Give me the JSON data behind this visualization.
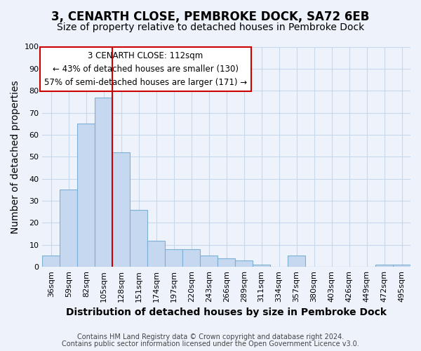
{
  "title": "3, CENARTH CLOSE, PEMBROKE DOCK, SA72 6EB",
  "subtitle": "Size of property relative to detached houses in Pembroke Dock",
  "xlabel": "Distribution of detached houses by size in Pembroke Dock",
  "ylabel": "Number of detached properties",
  "footnote1": "Contains HM Land Registry data © Crown copyright and database right 2024.",
  "footnote2": "Contains public sector information licensed under the Open Government Licence v3.0.",
  "annotation_line1": "3 CENARTH CLOSE: 112sqm",
  "annotation_line2": "← 43% of detached houses are smaller (130)",
  "annotation_line3": "57% of semi-detached houses are larger (171) →",
  "bar_labels": [
    "36sqm",
    "59sqm",
    "82sqm",
    "105sqm",
    "128sqm",
    "151sqm",
    "174sqm",
    "197sqm",
    "220sqm",
    "243sqm",
    "266sqm",
    "289sqm",
    "311sqm",
    "334sqm",
    "357sqm",
    "380sqm",
    "403sqm",
    "426sqm",
    "449sqm",
    "472sqm",
    "495sqm"
  ],
  "bar_values": [
    5,
    35,
    65,
    77,
    52,
    26,
    12,
    8,
    8,
    5,
    4,
    3,
    1,
    0,
    5,
    0,
    0,
    0,
    0,
    1,
    1
  ],
  "bar_color": "#c5d8f0",
  "bar_edge_color": "#7bafd4",
  "vline_color": "#cc0000",
  "vline_x": 3.5,
  "ylim": [
    0,
    100
  ],
  "yticks": [
    0,
    10,
    20,
    30,
    40,
    50,
    60,
    70,
    80,
    90,
    100
  ],
  "annotation_box_edge": "#cc0000",
  "background_color": "#eef3fb",
  "plot_background": "#eef3fb",
  "grid_color": "#c8d8ec",
  "title_fontsize": 12,
  "subtitle_fontsize": 10,
  "axis_label_fontsize": 10,
  "tick_fontsize": 8,
  "annotation_fontsize": 8.5,
  "footnote_fontsize": 7
}
